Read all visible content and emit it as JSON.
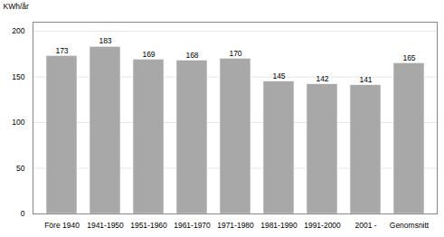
{
  "chart_data": {
    "type": "bar",
    "ylabel": "KWh/år",
    "categories": [
      "Före 1940",
      "1941-1950",
      "1951-1960",
      "1961-1970",
      "1971-1980",
      "1981-1990",
      "1991-2000",
      "2001 -",
      "Genomsnitt"
    ],
    "values": [
      173,
      183,
      169,
      168,
      170,
      145,
      142,
      141,
      165
    ],
    "color": "#a8a8a8",
    "ylim": [
      0,
      210
    ],
    "yticks": [
      0,
      50,
      100,
      150,
      200
    ],
    "grid": true,
    "data_labels": true
  }
}
